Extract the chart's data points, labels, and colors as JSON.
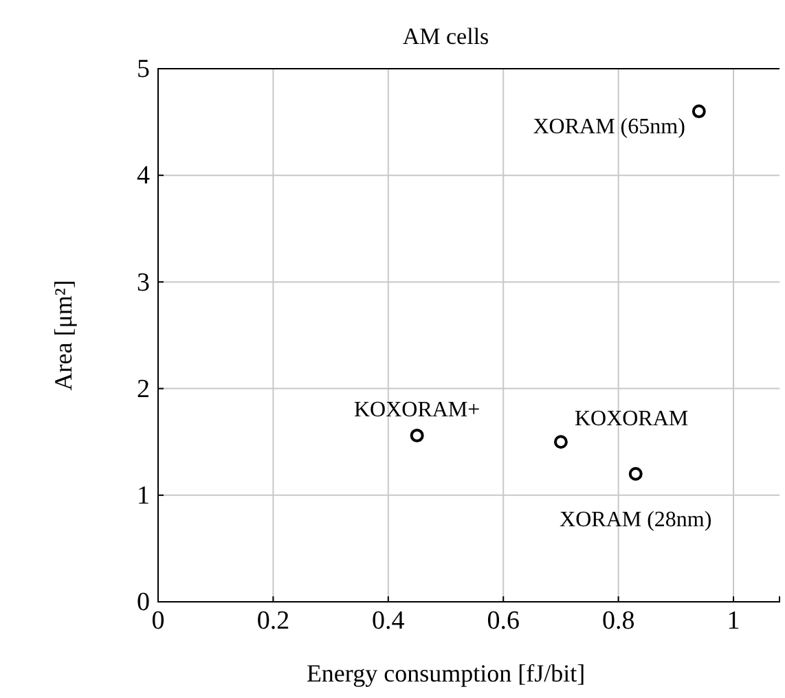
{
  "chart_data": {
    "type": "scatter",
    "title": "AM cells",
    "xlabel": "Energy consumption [fJ/bit]",
    "ylabel": "Area [μm²]",
    "x": [
      0.94,
      0.45,
      0.7,
      0.83
    ],
    "values": [
      4.6,
      1.56,
      1.5,
      1.2
    ],
    "color": "#000000",
    "marker": "circle",
    "annotations": [
      {
        "text": "XORAM (65nm)",
        "x": 0.94,
        "y": 4.6
      },
      {
        "text": "KOXORAM+",
        "x": 0.45,
        "y": 1.56
      },
      {
        "text": "KOXORAM",
        "x": 0.7,
        "y": 1.5
      },
      {
        "text": "XORAM (28nm)",
        "x": 0.83,
        "y": 1.2
      }
    ],
    "xlim": [
      0,
      1.08
    ],
    "xticks": [
      0,
      {
        "value": 0.2,
        "label": "0.2"
      },
      {
        "value": 0.4,
        "label": "0.4"
      },
      {
        "value": 0.6,
        "label": "0.6"
      },
      {
        "value": 0.8,
        "label": "0.8"
      },
      1
    ],
    "ylim": [
      0,
      5
    ],
    "yticks": [
      0,
      1,
      2,
      3,
      4,
      5
    ],
    "grid": true
  }
}
